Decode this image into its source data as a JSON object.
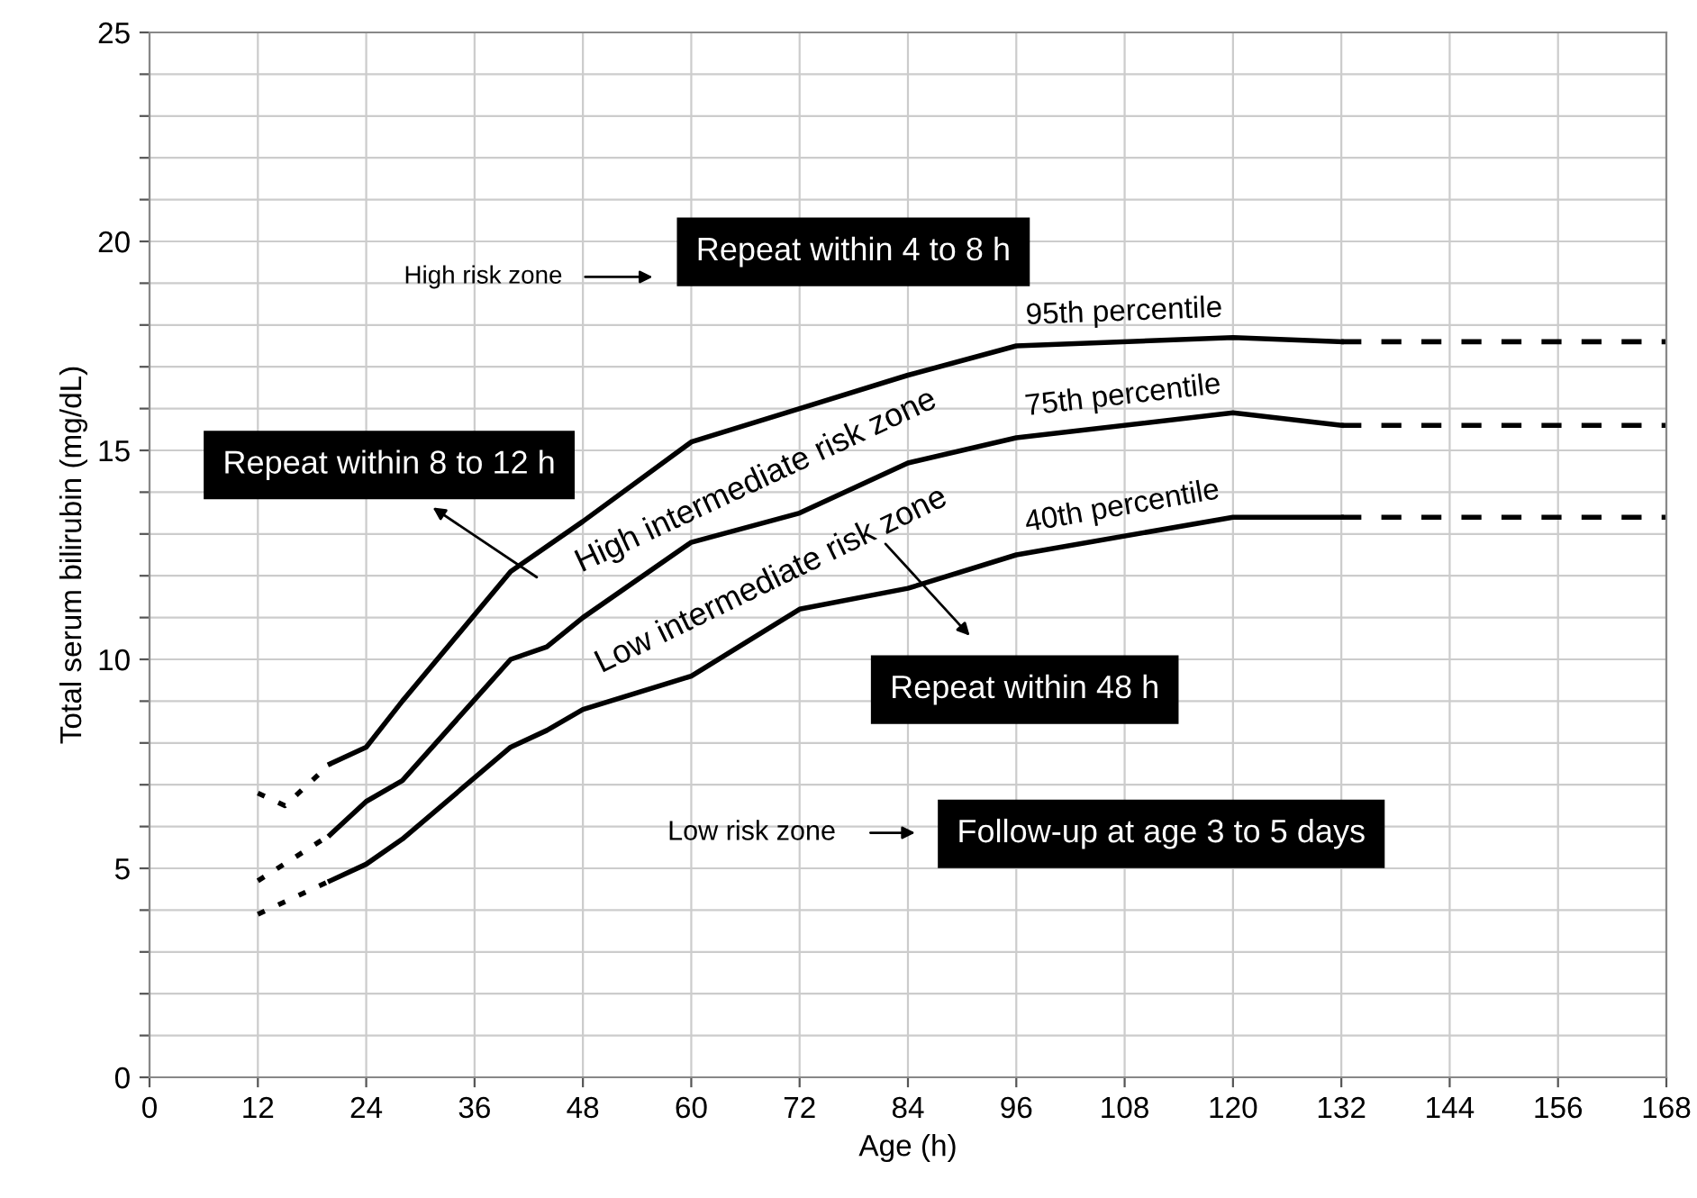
{
  "chart_data": {
    "type": "line",
    "xlabel": "Age (h)",
    "ylabel": "Total serum bilirubin (mg/dL)",
    "xlim": [
      0,
      168
    ],
    "ylim": [
      0,
      25
    ],
    "xticks": [
      0,
      12,
      24,
      36,
      48,
      60,
      72,
      84,
      96,
      108,
      120,
      132,
      144,
      156,
      168
    ],
    "yticks": [
      0,
      {
        "value": 1,
        "label": null
      },
      {
        "value": 2,
        "label": null
      },
      {
        "value": 3,
        "label": null
      },
      {
        "value": 4,
        "label": null
      },
      5,
      {
        "value": 6,
        "label": null
      },
      {
        "value": 7,
        "label": null
      },
      {
        "value": 8,
        "label": null
      },
      {
        "value": 9,
        "label": null
      },
      10,
      {
        "value": 11,
        "label": null
      },
      {
        "value": 12,
        "label": null
      },
      {
        "value": 13,
        "label": null
      },
      {
        "value": 14,
        "label": null
      },
      15,
      {
        "value": 16,
        "label": null
      },
      {
        "value": 17,
        "label": null
      },
      {
        "value": 18,
        "label": null
      },
      {
        "value": 19,
        "label": null
      },
      20,
      {
        "value": 21,
        "label": null
      },
      {
        "value": 22,
        "label": null
      },
      {
        "value": 23,
        "label": null
      },
      {
        "value": 24,
        "label": null
      },
      25
    ],
    "grid": true,
    "legend": false,
    "marker": "none",
    "series": [
      {
        "color": "#000000",
        "line_style": "dotted",
        "x": [
          12,
          15,
          20
        ],
        "values": [
          6.8,
          6.5,
          7.5
        ]
      },
      {
        "name": "95th percentile",
        "color": "#000000",
        "line_style": "solid",
        "x": [
          20,
          24,
          28,
          40,
          48,
          60,
          72,
          84,
          96,
          120,
          132
        ],
        "values": [
          7.5,
          7.9,
          9.0,
          12.1,
          13.3,
          15.2,
          16.0,
          16.8,
          17.5,
          17.7,
          17.6
        ]
      },
      {
        "color": "#000000",
        "line_style": "dashed",
        "x": [
          132,
          168
        ],
        "values": [
          17.6,
          17.6
        ]
      },
      {
        "color": "#000000",
        "line_style": "dotted",
        "x": [
          12,
          20
        ],
        "values": [
          4.7,
          5.8
        ]
      },
      {
        "name": "75th percentile",
        "color": "#000000",
        "line_style": "solid",
        "x": [
          20,
          24,
          28,
          40,
          44,
          48,
          60,
          72,
          84,
          96,
          120,
          132
        ],
        "values": [
          5.8,
          6.6,
          7.1,
          10.0,
          10.3,
          11.0,
          12.8,
          13.5,
          14.7,
          15.3,
          15.9,
          15.6
        ]
      },
      {
        "color": "#000000",
        "line_style": "dashed",
        "x": [
          132,
          168
        ],
        "values": [
          15.6,
          15.6
        ]
      },
      {
        "color": "#000000",
        "line_style": "dotted",
        "x": [
          12,
          20
        ],
        "values": [
          3.9,
          4.7
        ]
      },
      {
        "name": "40th percentile",
        "color": "#000000",
        "line_style": "solid",
        "x": [
          20,
          24,
          28,
          40,
          44,
          48,
          60,
          72,
          84,
          96,
          120,
          132
        ],
        "values": [
          4.7,
          5.1,
          5.7,
          7.9,
          8.3,
          8.8,
          9.6,
          11.2,
          11.7,
          12.5,
          13.4,
          13.4
        ]
      },
      {
        "color": "#000000",
        "line_style": "dashed",
        "x": [
          132,
          168
        ],
        "values": [
          13.4,
          13.4
        ]
      }
    ],
    "annotations": [
      "High risk zone",
      "Repeat within 4 to 8 h",
      "Repeat within 8 to 12 h",
      "High intermediate risk zone",
      "Low intermediate risk zone",
      "Repeat within 48 h",
      "Low risk zone",
      "Follow-up at age 3 to 5 days"
    ]
  }
}
